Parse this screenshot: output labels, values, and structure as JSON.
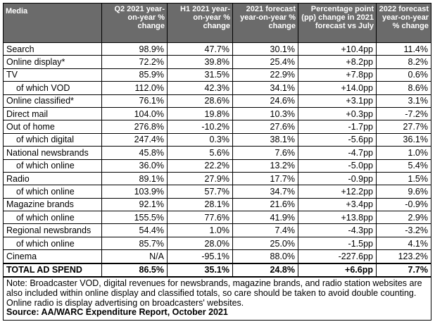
{
  "table": {
    "headers": [
      "Media",
      "Q2 2021 year-on-year % change",
      "H1 2021 year-on-year % change",
      "2021 forecast year-on-year % change",
      "Percentage point (pp) change in 2021 forecast vs July",
      "2022 forecast year-on-year % change"
    ],
    "rows": [
      {
        "media": "Search",
        "q2": "98.9%",
        "h1": "47.7%",
        "f2021": "30.1%",
        "pp": "+10.4pp",
        "f2022": "11.4%",
        "sub": false
      },
      {
        "media": "Online display*",
        "q2": "72.2%",
        "h1": "39.8%",
        "f2021": "25.4%",
        "pp": "+8.2pp",
        "f2022": "8.2%",
        "sub": false
      },
      {
        "media": "TV",
        "q2": "85.9%",
        "h1": "31.5%",
        "f2021": "22.9%",
        "pp": "+7.8pp",
        "f2022": "0.6%",
        "sub": false
      },
      {
        "media": "of which VOD",
        "q2": "112.0%",
        "h1": "42.3%",
        "f2021": "34.1%",
        "pp": "+14.0pp",
        "f2022": "8.6%",
        "sub": true
      },
      {
        "media": "Online classified*",
        "q2": "76.1%",
        "h1": "28.6%",
        "f2021": "24.6%",
        "pp": "+3.1pp",
        "f2022": "3.1%",
        "sub": false
      },
      {
        "media": "Direct mail",
        "q2": "104.0%",
        "h1": "19.8%",
        "f2021": "10.3%",
        "pp": "+0.3pp",
        "f2022": "-7.2%",
        "sub": false
      },
      {
        "media": "Out of home",
        "q2": "276.8%",
        "h1": "-10.2%",
        "f2021": "27.6%",
        "pp": "-1.7pp",
        "f2022": "27.7%",
        "sub": false
      },
      {
        "media": "of which digital",
        "q2": "247.4%",
        "h1": "0.3%",
        "f2021": "38.1%",
        "pp": "-5.6pp",
        "f2022": "36.1%",
        "sub": true
      },
      {
        "media": "National newsbrands",
        "q2": "45.8%",
        "h1": "5.6%",
        "f2021": "7.6%",
        "pp": "-4.7pp",
        "f2022": "1.0%",
        "sub": false
      },
      {
        "media": "of which online",
        "q2": "36.0%",
        "h1": "22.2%",
        "f2021": "13.2%",
        "pp": "-5.0pp",
        "f2022": "5.4%",
        "sub": true
      },
      {
        "media": "Radio",
        "q2": "89.1%",
        "h1": "27.9%",
        "f2021": "17.7%",
        "pp": "-0.9pp",
        "f2022": "1.5%",
        "sub": false
      },
      {
        "media": "of which online",
        "q2": "103.9%",
        "h1": "57.7%",
        "f2021": "34.7%",
        "pp": "+12.2pp",
        "f2022": "9.6%",
        "sub": true
      },
      {
        "media": "Magazine brands",
        "q2": "92.1%",
        "h1": "28.1%",
        "f2021": "21.6%",
        "pp": "+3.4pp",
        "f2022": "-0.9%",
        "sub": false
      },
      {
        "media": "of which online",
        "q2": "155.5%",
        "h1": "77.6%",
        "f2021": "41.9%",
        "pp": "+13.8pp",
        "f2022": "2.9%",
        "sub": true
      },
      {
        "media": "Regional newsbrands",
        "q2": "54.4%",
        "h1": "1.0%",
        "f2021": "7.4%",
        "pp": "-4.3pp",
        "f2022": "-3.2%",
        "sub": false
      },
      {
        "media": "of which online",
        "q2": "85.7%",
        "h1": "28.0%",
        "f2021": "25.0%",
        "pp": "-1.5pp",
        "f2022": "4.1%",
        "sub": true
      },
      {
        "media": "Cinema",
        "q2": "N/A",
        "h1": "-95.1%",
        "f2021": "88.0%",
        "pp": "-227.6pp",
        "f2022": "123.2%",
        "sub": false
      }
    ],
    "total": {
      "media": "TOTAL AD SPEND",
      "q2": "86.5%",
      "h1": "35.1%",
      "f2021": "24.8%",
      "pp": "+6.6pp",
      "f2022": "7.7%"
    },
    "note": "Note: Broadcaster VOD, digital revenues for newsbrands, magazine brands, and radio station websites are also included within online display and classified totals, so care should be taken to avoid double counting. Online radio is display advertising on broadcasters' websites.",
    "source": "Source: AA/WARC Expenditure Report, October 2021"
  },
  "colors": {
    "header_bg": "#6b6b6b",
    "header_text": "#ffffff",
    "border": "#000000"
  }
}
